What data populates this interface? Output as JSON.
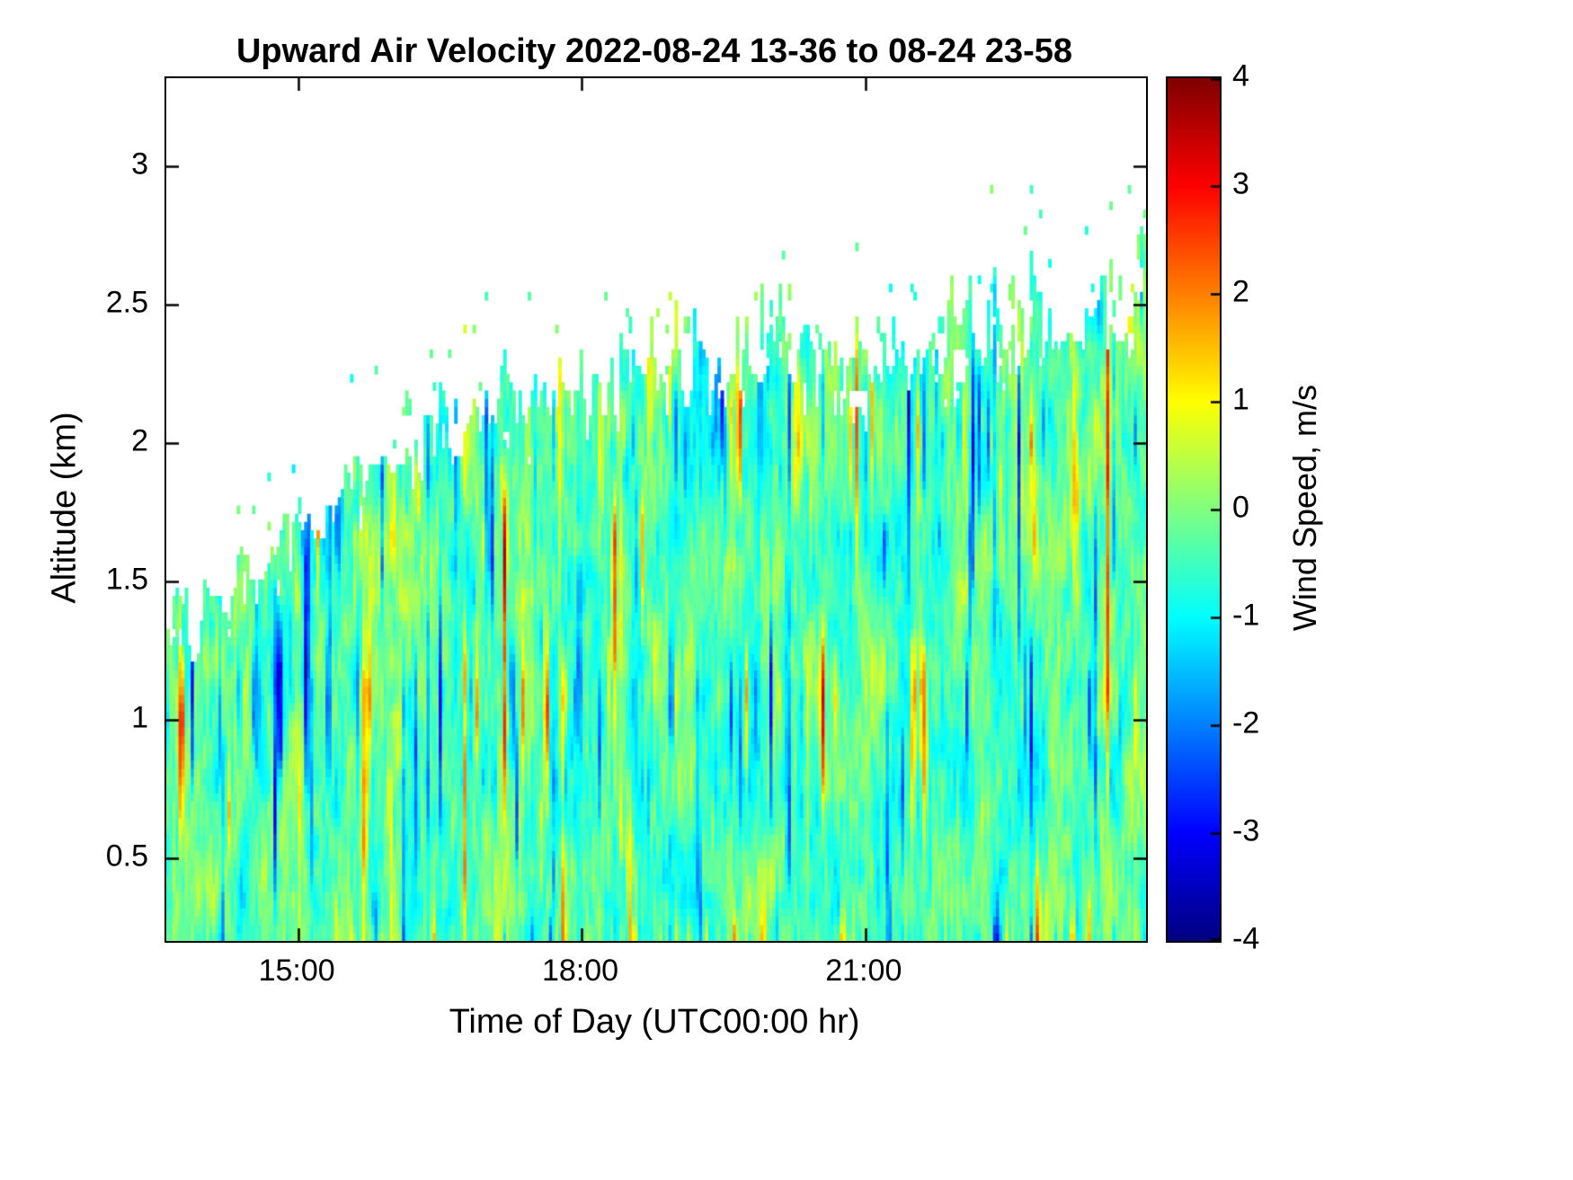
{
  "chart_data": {
    "type": "heatmap",
    "title": "Upward Air Velocity 2022-08-24 13-36 to 08-24 23-58",
    "xlabel": "Time of Day (UTC00:00 hr)",
    "ylabel": "Altitude (km)",
    "colorbar_label": "Wind Speed, m/s",
    "colormap": "jet",
    "clim": [
      -4,
      4
    ],
    "x_range_hours": [
      13.6,
      23.97
    ],
    "y_range_km": [
      0.2,
      3.32
    ],
    "x_ticks": [
      {
        "hour": 15,
        "label": "15:00"
      },
      {
        "hour": 18,
        "label": "18:00"
      },
      {
        "hour": 21,
        "label": "21:00"
      }
    ],
    "y_ticks": [
      {
        "km": 0.5,
        "label": "0.5"
      },
      {
        "km": 1,
        "label": "1"
      },
      {
        "km": 1.5,
        "label": "1.5"
      },
      {
        "km": 2,
        "label": "2"
      },
      {
        "km": 2.5,
        "label": "2.5"
      },
      {
        "km": 3,
        "label": "3"
      }
    ],
    "colorbar_ticks": [
      {
        "value": 4,
        "label": "4"
      },
      {
        "value": 3,
        "label": "3"
      },
      {
        "value": 2,
        "label": "2"
      },
      {
        "value": 1,
        "label": "1"
      },
      {
        "value": 0,
        "label": "0"
      },
      {
        "value": -1,
        "label": "-1"
      },
      {
        "value": -2,
        "label": "-2"
      },
      {
        "value": -3,
        "label": "-3"
      },
      {
        "value": -4,
        "label": "-4"
      }
    ],
    "background_value_range_ms": [
      -1.2,
      0.5
    ],
    "updraft_peak_ms": 3,
    "downdraft_peak_ms": -4,
    "cloud_top_envelope": {
      "hours": [
        13.6,
        14,
        14.5,
        15,
        15.5,
        16,
        16.5,
        17,
        17.5,
        18,
        18.5,
        19,
        19.5,
        20,
        20.5,
        21,
        21.5,
        22,
        22.5,
        23,
        23.5,
        23.97
      ],
      "top_km": [
        1.45,
        1.5,
        1.62,
        1.8,
        2.0,
        2.12,
        2.22,
        2.32,
        2.3,
        2.35,
        2.42,
        2.52,
        2.45,
        2.62,
        2.42,
        2.46,
        2.52,
        2.58,
        2.62,
        2.66,
        2.7,
        2.76
      ]
    },
    "description": "Time-height cross-section of vertical air velocity from 13:36 to 23:58 UTC on 2022-08-24; convective boundary layer with alternating updraft (red/orange, +1 to +3 m/s) and downdraft (blue, -1 to -4 m/s) plumes embedded in a near-zero (green/cyan) background; echo-top height rises from about 1.5 km at 13:36 to about 2.7 km by 23:58."
  }
}
